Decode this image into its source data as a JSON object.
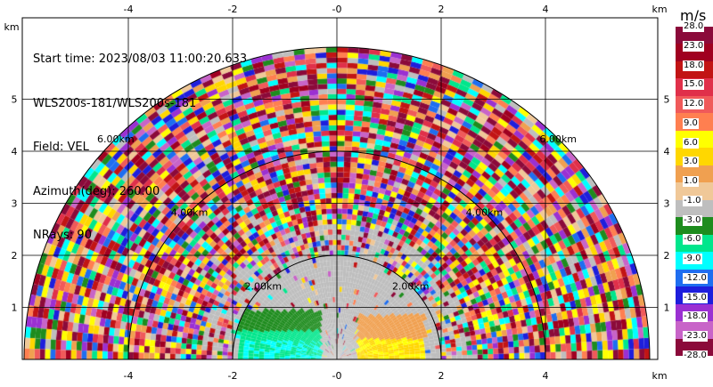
{
  "info": {
    "start_time": "Start time: 2023/08/03 11:00:20.633",
    "instrument": "WLS200s-181/WLS200s-181",
    "field": "Field: VEL",
    "azimuth": "Azimuth(deg): 260.00",
    "nrays": "NRays: 90"
  },
  "colorbar": {
    "title": "m/s",
    "labels": [
      "28.0",
      "23.0",
      "18.0",
      "15.0",
      "12.0",
      "9.0",
      "6.0",
      "3.0",
      "1.0",
      "-1.0",
      "-3.0",
      "-6.0",
      "-9.0",
      "-12.0",
      "-15.0",
      "-18.0",
      "-23.0",
      "-28.0"
    ],
    "colors": [
      "#8b0a3a",
      "#a00020",
      "#c21414",
      "#e0304a",
      "#f05a5a",
      "#ff7f50",
      "#ffff00",
      "#ffd700",
      "#f0a050",
      "#f0c898",
      "#bebebe",
      "#1e8c1e",
      "#00e68c",
      "#00ffff",
      "#1e6ef0",
      "#1e1edc",
      "#9b30d2",
      "#c864c8",
      "#8b0a3a"
    ]
  },
  "chart_data": {
    "type": "heatmap",
    "title": "",
    "xlabel": "",
    "ylabel": "",
    "x_unit": "km",
    "y_unit": "km",
    "xlim": [
      -6,
      6
    ],
    "ylim": [
      0,
      6
    ],
    "x_ticks": [
      "-4",
      "-2",
      "-0",
      "2",
      "4"
    ],
    "y_ticks": [
      "1",
      "2",
      "3",
      "4",
      "5"
    ],
    "grid": true,
    "range_rings": [
      "2.00km",
      "4.00km",
      "6.00km"
    ],
    "value_range_ms": [
      -28,
      28
    ]
  }
}
